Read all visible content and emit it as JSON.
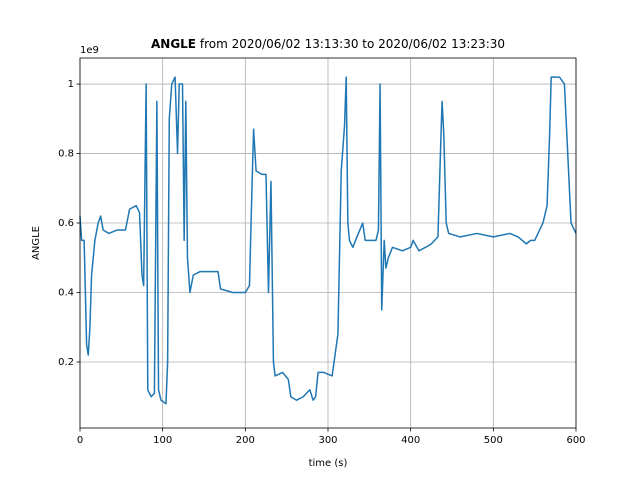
{
  "chart_data": {
    "type": "line",
    "title_bold": "ANGLE",
    "title": "from 2020/06/02 13:13:30 to 2020/06/02 13:23:30",
    "x_label": "time (s)",
    "y_label": "ANGLE",
    "y_offset_label": "1e9",
    "xlim": [
      0,
      600
    ],
    "ylim": [
      0.01,
      1.075
    ],
    "xticks": [
      0,
      100,
      200,
      300,
      400,
      500,
      600
    ],
    "yticks": [
      0.2,
      0.4,
      0.6,
      0.8,
      1.0
    ],
    "grid": true,
    "series": [
      {
        "color": "#1f77b4",
        "x": [
          0,
          2,
          5,
          8,
          10,
          12,
          14,
          18,
          22,
          25,
          28,
          35,
          45,
          55,
          60,
          68,
          72,
          75,
          77,
          80,
          82,
          86,
          90,
          93,
          95,
          98,
          104,
          106,
          108,
          111,
          115,
          118,
          120,
          124,
          126,
          128,
          130,
          133,
          137,
          145,
          160,
          167,
          170,
          185,
          200,
          205,
          208,
          210,
          213,
          220,
          225,
          228,
          231,
          234,
          236,
          245,
          252,
          255,
          262,
          270,
          278,
          282,
          285,
          288,
          295,
          305,
          312,
          316,
          320,
          322,
          324,
          326,
          330,
          335,
          342,
          345,
          350,
          358,
          361,
          363,
          365,
          368,
          370,
          373,
          378,
          390,
          400,
          403,
          410,
          418,
          425,
          433,
          436,
          438,
          440,
          443,
          446,
          460,
          480,
          500,
          520,
          530,
          540,
          545,
          550,
          560,
          565,
          568,
          570,
          580,
          586,
          588,
          591,
          594,
          598,
          600
        ],
        "values": [
          0.62,
          0.55,
          0.55,
          0.25,
          0.22,
          0.3,
          0.45,
          0.55,
          0.6,
          0.62,
          0.58,
          0.57,
          0.58,
          0.58,
          0.64,
          0.65,
          0.63,
          0.45,
          0.42,
          1.0,
          0.12,
          0.1,
          0.11,
          0.95,
          0.12,
          0.09,
          0.08,
          0.2,
          0.9,
          1.0,
          1.02,
          0.8,
          1.0,
          1.0,
          0.55,
          0.95,
          0.5,
          0.4,
          0.45,
          0.46,
          0.46,
          0.46,
          0.41,
          0.4,
          0.4,
          0.42,
          0.7,
          0.87,
          0.75,
          0.74,
          0.74,
          0.4,
          0.72,
          0.2,
          0.16,
          0.17,
          0.15,
          0.1,
          0.09,
          0.1,
          0.12,
          0.09,
          0.1,
          0.17,
          0.17,
          0.16,
          0.28,
          0.75,
          0.88,
          1.02,
          0.6,
          0.55,
          0.53,
          0.56,
          0.6,
          0.55,
          0.55,
          0.55,
          0.58,
          1.0,
          0.35,
          0.55,
          0.47,
          0.5,
          0.53,
          0.52,
          0.53,
          0.55,
          0.52,
          0.53,
          0.54,
          0.56,
          0.8,
          0.95,
          0.86,
          0.6,
          0.57,
          0.56,
          0.57,
          0.56,
          0.57,
          0.56,
          0.54,
          0.55,
          0.55,
          0.6,
          0.65,
          0.85,
          1.02,
          1.02,
          1.0,
          0.9,
          0.75,
          0.6,
          0.58,
          0.57
        ]
      }
    ]
  }
}
